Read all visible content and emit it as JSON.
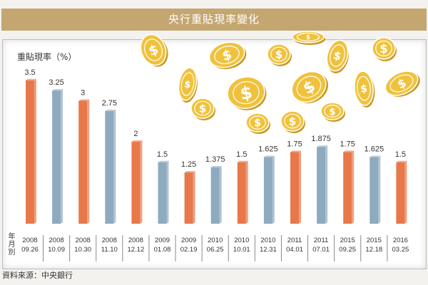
{
  "title": "央行重貼現率變化",
  "footer": "資料來源：中央銀行",
  "colors": {
    "orange": "#e8784a",
    "blue": "#8eaabf",
    "title_bar": "#c4a670",
    "coin": "#f0c23c"
  },
  "chart_data": {
    "type": "bar",
    "title": "央行重貼現率變化",
    "ylabel": "重貼現率（%）",
    "xlabel": "年月別",
    "ylim": [
      0,
      3.5
    ],
    "grid": false,
    "categories": [
      [
        "2008",
        "09.26"
      ],
      [
        "2008",
        "10.09"
      ],
      [
        "2008",
        "10.30"
      ],
      [
        "2008",
        "11.10"
      ],
      [
        "2008",
        "12.12"
      ],
      [
        "2009",
        "01.08"
      ],
      [
        "2009",
        "02.19"
      ],
      [
        "2010",
        "06.25"
      ],
      [
        "2010",
        "10.01"
      ],
      [
        "2010",
        "12.31"
      ],
      [
        "2011",
        "04.01"
      ],
      [
        "2011",
        "07.01"
      ],
      [
        "2015",
        "09.25"
      ],
      [
        "2015",
        "12.18"
      ],
      [
        "2016",
        "03.25"
      ]
    ],
    "values": [
      3.5,
      3.25,
      3,
      2.75,
      2,
      1.5,
      1.25,
      1.375,
      1.5,
      1.625,
      1.75,
      1.875,
      1.75,
      1.625,
      1.5
    ],
    "value_labels": [
      "3.5",
      "3.25",
      "3",
      "2.75",
      "2",
      "1.5",
      "1.25",
      "1.375",
      "1.5",
      "1.625",
      "1.75",
      "1.875",
      "1.75",
      "1.625",
      "1.5"
    ]
  }
}
